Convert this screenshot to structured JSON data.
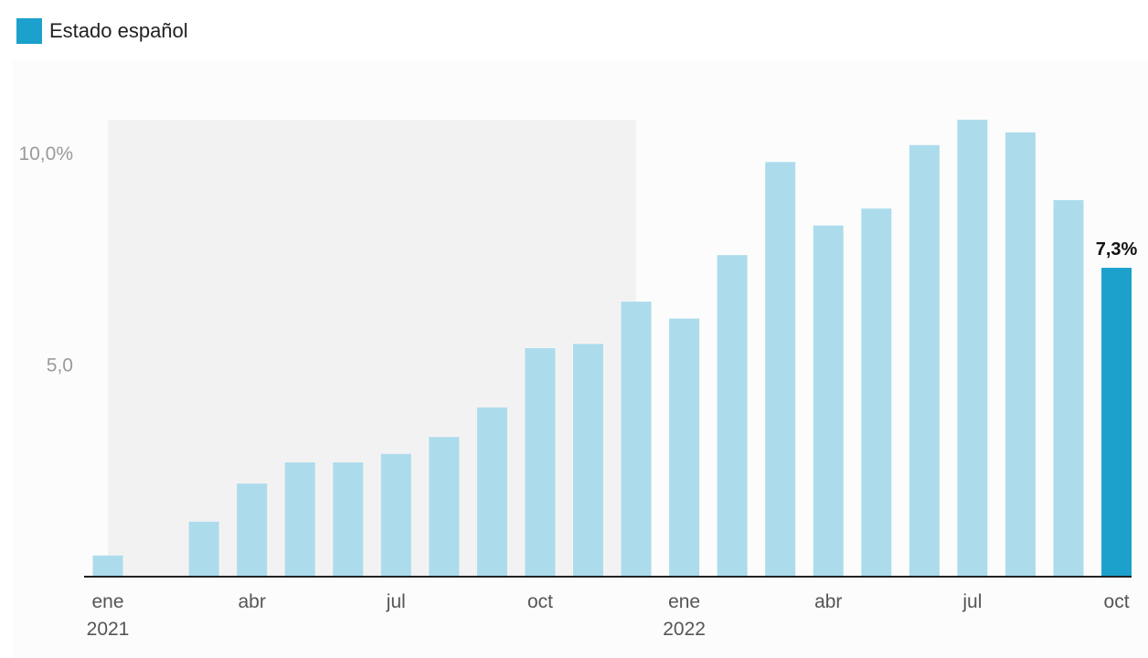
{
  "legend": {
    "label": "Estado español",
    "color": "#1ba1cc"
  },
  "chart_data": {
    "type": "bar",
    "categories": [
      "ene 2021",
      "feb 2021",
      "mar 2021",
      "abr 2021",
      "may 2021",
      "jun 2021",
      "jul 2021",
      "ago 2021",
      "sep 2021",
      "oct 2021",
      "nov 2021",
      "dic 2021",
      "ene 2022",
      "feb 2022",
      "mar 2022",
      "abr 2022",
      "may 2022",
      "jun 2022",
      "jul 2022",
      "ago 2022",
      "sep 2022",
      "oct 2022"
    ],
    "series": [
      {
        "name": "Estado español",
        "values": [
          0.5,
          0.0,
          1.3,
          2.2,
          2.7,
          2.7,
          2.9,
          3.3,
          4.0,
          5.4,
          5.5,
          6.5,
          6.1,
          7.6,
          9.8,
          8.3,
          8.7,
          10.2,
          10.8,
          10.5,
          8.9,
          7.3
        ]
      }
    ],
    "highlight_index": 21,
    "highlight_label": "7,3%",
    "shaded_range": [
      "ene 2021",
      "dic 2021"
    ],
    "yticks": [
      {
        "value": 5,
        "label": "5,0"
      },
      {
        "value": 10,
        "label": "10,0%"
      }
    ],
    "xticks": [
      {
        "index": 0,
        "month": "ene",
        "year": "2021"
      },
      {
        "index": 3,
        "month": "abr",
        "year": ""
      },
      {
        "index": 6,
        "month": "jul",
        "year": ""
      },
      {
        "index": 9,
        "month": "oct",
        "year": ""
      },
      {
        "index": 12,
        "month": "ene",
        "year": "2022"
      },
      {
        "index": 15,
        "month": "abr",
        "year": ""
      },
      {
        "index": 18,
        "month": "jul",
        "year": ""
      },
      {
        "index": 21,
        "month": "oct",
        "year": ""
      }
    ],
    "ylim": [
      0,
      10.8
    ],
    "colors": {
      "bar": "#acdcec",
      "highlight": "#1ba1cc",
      "shade": "#f3f2f3"
    }
  }
}
